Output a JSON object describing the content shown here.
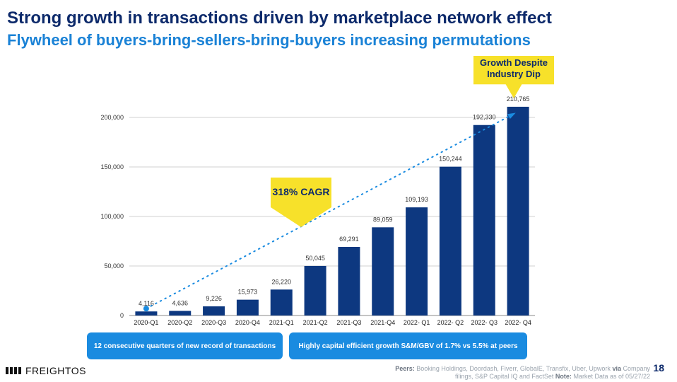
{
  "header": {
    "title": "Strong growth in transactions driven by marketplace network effect",
    "subtitle": "Flywheel of buyers-bring-sellers-bring-buyers increasing permutations"
  },
  "chart_data": {
    "type": "bar",
    "categories": [
      "2020-Q1",
      "2020-Q2",
      "2020-Q3",
      "2020-Q4",
      "2021-Q1",
      "2021-Q2",
      "2021-Q3",
      "2021-Q4",
      "2022- Q1",
      "2022- Q2",
      "2022- Q3",
      "2022- Q4"
    ],
    "values": [
      4116,
      4636,
      9226,
      15973,
      26220,
      50045,
      69291,
      89059,
      109193,
      150244,
      192330,
      210765
    ],
    "value_labels": [
      "4,116",
      "4,636",
      "9,226",
      "15,973",
      "26,220",
      "50,045",
      "69,291",
      "89,059",
      "109,193",
      "150,244",
      "192,330",
      "210,765"
    ],
    "yticks": [
      0,
      50000,
      100000,
      150000,
      200000
    ],
    "ytick_labels": [
      "0",
      "50,000",
      "100,000",
      "150,000",
      "200,000"
    ],
    "ylim": [
      0,
      200000
    ],
    "bar_color": "#0d3880",
    "trendline_color": "#1a8be0",
    "grid": true
  },
  "callouts": {
    "cagr": "318% CAGR",
    "growth_line1": "Growth Despite",
    "growth_line2": "Industry Dip"
  },
  "pills": {
    "left": "12 consecutive quarters of new record of transactions",
    "right": "Highly capital efficient growth S&M/GBV  of 1.7% vs 5.5% at peers"
  },
  "footer": {
    "logo_text": "FREIGHTOS",
    "peers_label": "Peers:",
    "peers_text": "Booking Holdings, Doordash, Fiverr, GlobalE, Transfix, Uber, Upwork",
    "via_label": "via",
    "via_text": "Company",
    "line2_text": "filings, S&P Capital IQ and FactSet",
    "note_label": "Note:",
    "note_text": "Market Data as of 05/27/22",
    "page_number": "18"
  },
  "colors": {
    "title": "#0d2a6b",
    "subtitle": "#1a82d6",
    "callout": "#f7e12a",
    "pill": "#1a8be0"
  }
}
